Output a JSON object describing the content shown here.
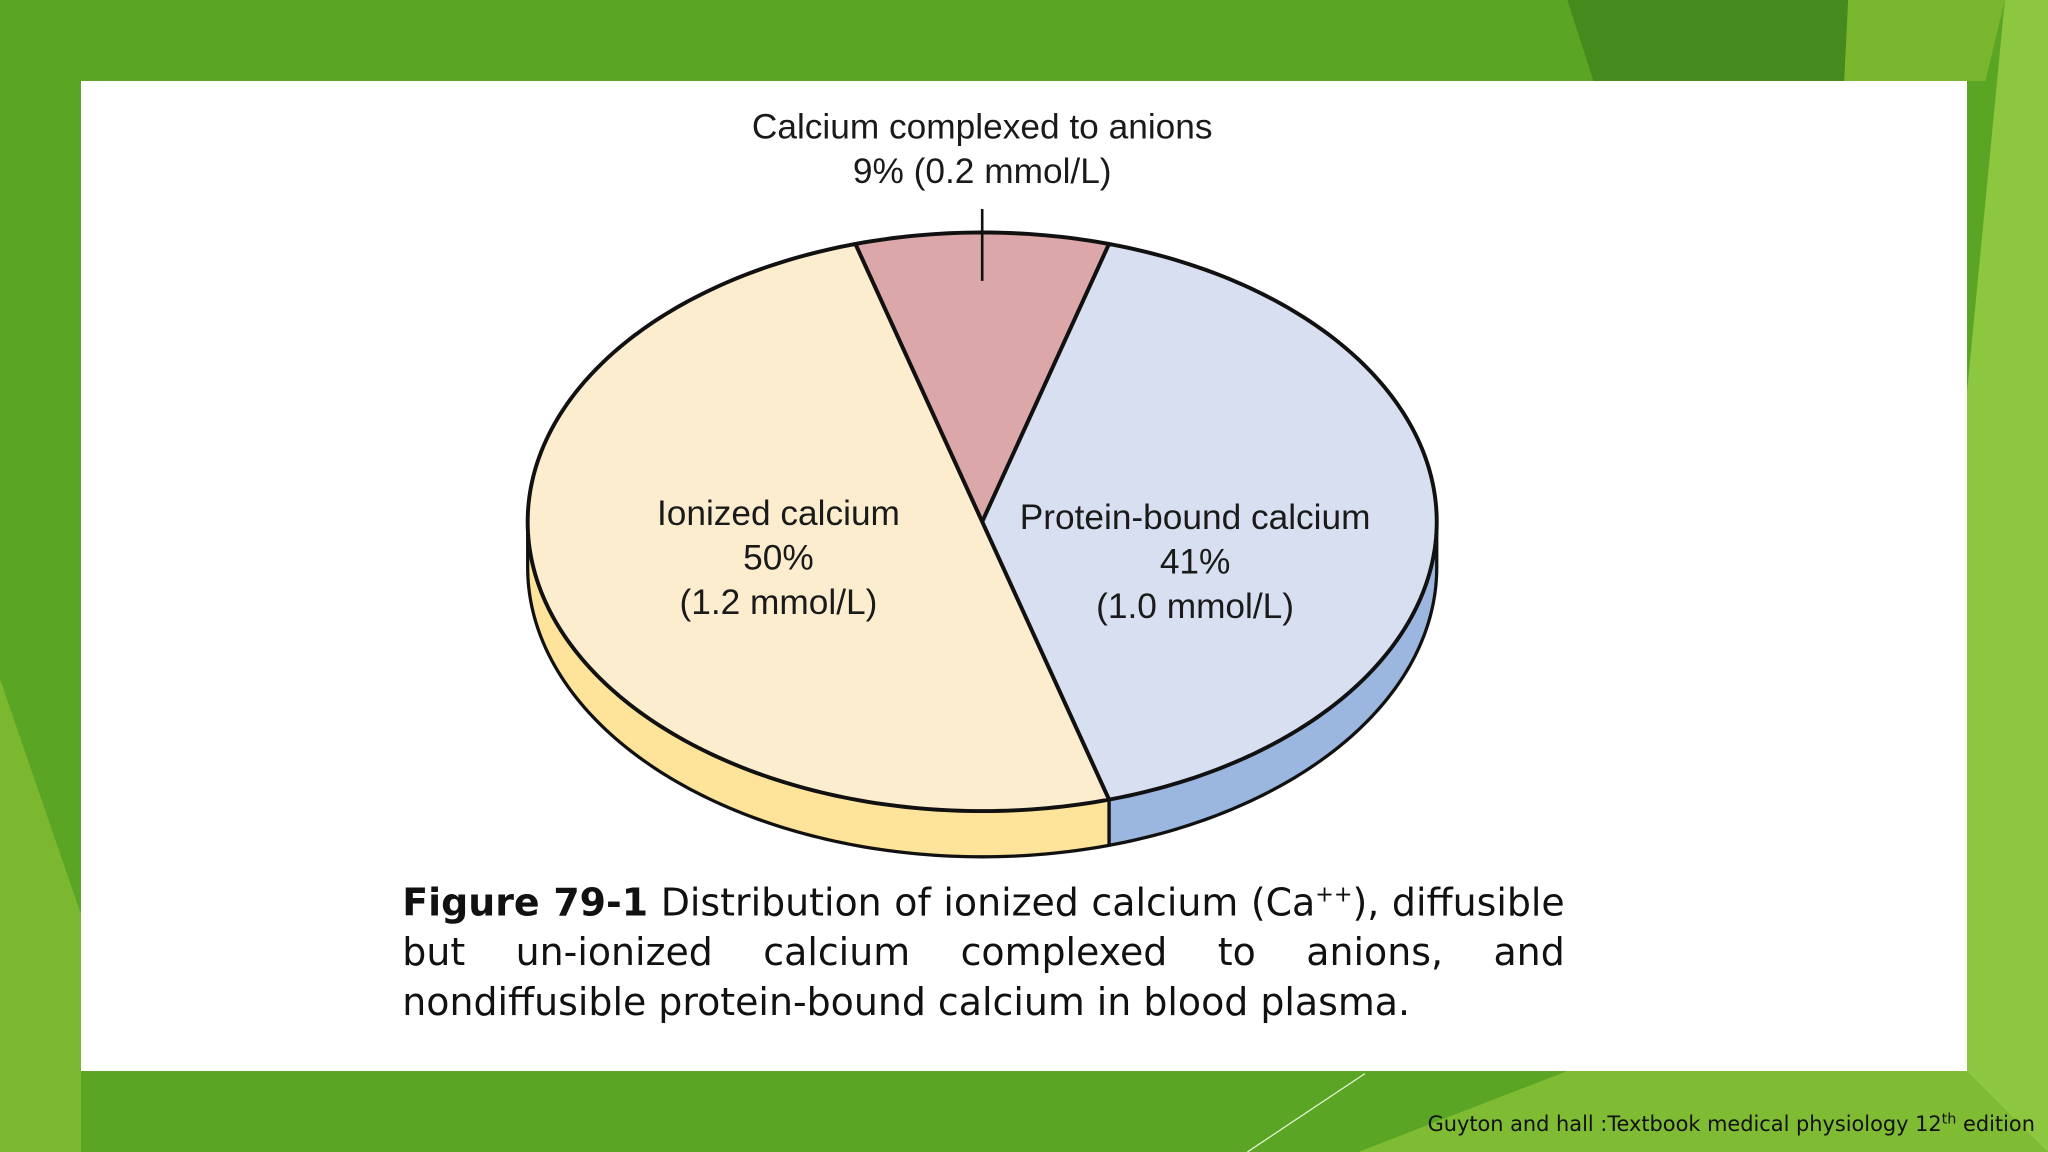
{
  "chart_data": {
    "type": "pie",
    "categories": [
      "Calcium complexed to anions",
      "Protein-bound calcium",
      "Ionized calcium"
    ],
    "values": [
      9,
      41,
      50
    ],
    "value_labels": [
      "9%",
      "41%",
      "50%"
    ],
    "concentration_labels": [
      "(0.2 mmol/L)",
      "(1.0 mmol/L)",
      "(1.2 mmol/L)"
    ],
    "colors": [
      "#dca7a9",
      "#d8dff0",
      "#fdedcf"
    ],
    "side_colors": [
      "#c88e90",
      "#9bb7df",
      "#fde49a"
    ]
  },
  "caption": {
    "label": "Figure 79-1",
    "text_before": "Distribution of ionized calcium (Ca",
    "superscript": "++",
    "text_after": "), diffusible but un-ionized calcium complexed to anions, and nondiffusible protein-bound calcium in blood plasma."
  },
  "citation": {
    "text": "Guyton and hall :Textbook medical physiology 12",
    "superscript": "th",
    "text_after": " edition"
  }
}
